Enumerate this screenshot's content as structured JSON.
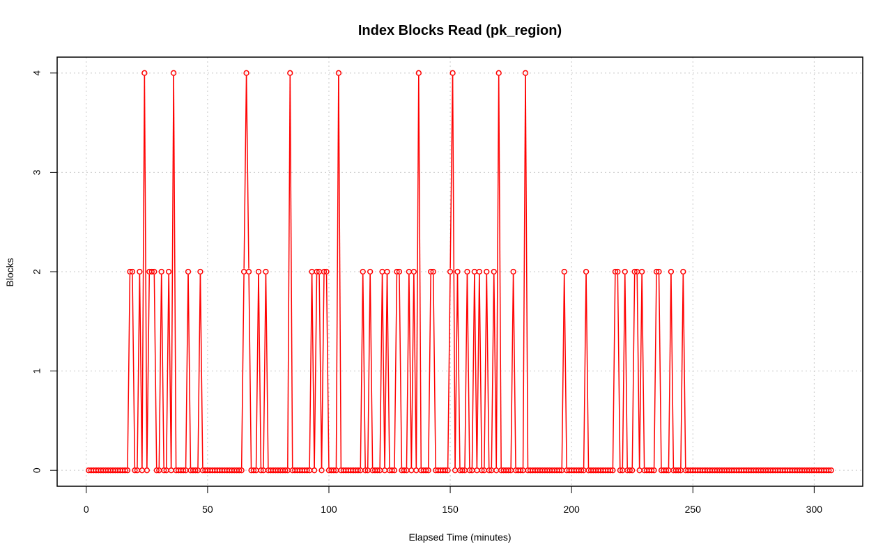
{
  "chart_data": {
    "type": "line",
    "title": "Index Blocks Read (pk_region)",
    "xlabel": "Elapsed Time (minutes)",
    "ylabel": "Blocks",
    "xlim": [
      -12,
      320
    ],
    "ylim": [
      -0.16,
      4.16
    ],
    "x_ticks": [
      0,
      50,
      100,
      150,
      200,
      250,
      300
    ],
    "y_ticks": [
      0,
      1,
      2,
      3,
      4
    ],
    "grid": true,
    "series_color": "#ff0000",
    "markers": "open-circle",
    "x_start": 1,
    "x_end": 307,
    "spikes": [
      {
        "x": 18,
        "y": 2
      },
      {
        "x": 19,
        "y": 2
      },
      {
        "x": 22,
        "y": 2
      },
      {
        "x": 24,
        "y": 4
      },
      {
        "x": 26,
        "y": 2
      },
      {
        "x": 27,
        "y": 2
      },
      {
        "x": 28,
        "y": 2
      },
      {
        "x": 31,
        "y": 2
      },
      {
        "x": 34,
        "y": 2
      },
      {
        "x": 36,
        "y": 4
      },
      {
        "x": 42,
        "y": 2
      },
      {
        "x": 47,
        "y": 2
      },
      {
        "x": 65,
        "y": 2
      },
      {
        "x": 66,
        "y": 4
      },
      {
        "x": 67,
        "y": 2
      },
      {
        "x": 71,
        "y": 2
      },
      {
        "x": 74,
        "y": 2
      },
      {
        "x": 84,
        "y": 4
      },
      {
        "x": 93,
        "y": 2
      },
      {
        "x": 95,
        "y": 2
      },
      {
        "x": 96,
        "y": 2
      },
      {
        "x": 98,
        "y": 2
      },
      {
        "x": 99,
        "y": 2
      },
      {
        "x": 104,
        "y": 4
      },
      {
        "x": 114,
        "y": 2
      },
      {
        "x": 117,
        "y": 2
      },
      {
        "x": 122,
        "y": 2
      },
      {
        "x": 124,
        "y": 2
      },
      {
        "x": 128,
        "y": 2
      },
      {
        "x": 129,
        "y": 2
      },
      {
        "x": 133,
        "y": 2
      },
      {
        "x": 135,
        "y": 2
      },
      {
        "x": 137,
        "y": 4
      },
      {
        "x": 142,
        "y": 2
      },
      {
        "x": 143,
        "y": 2
      },
      {
        "x": 150,
        "y": 2
      },
      {
        "x": 151,
        "y": 4
      },
      {
        "x": 153,
        "y": 2
      },
      {
        "x": 157,
        "y": 2
      },
      {
        "x": 160,
        "y": 2
      },
      {
        "x": 162,
        "y": 2
      },
      {
        "x": 165,
        "y": 2
      },
      {
        "x": 168,
        "y": 2
      },
      {
        "x": 170,
        "y": 4
      },
      {
        "x": 176,
        "y": 2
      },
      {
        "x": 181,
        "y": 4
      },
      {
        "x": 197,
        "y": 2
      },
      {
        "x": 206,
        "y": 2
      },
      {
        "x": 218,
        "y": 2
      },
      {
        "x": 219,
        "y": 2
      },
      {
        "x": 222,
        "y": 2
      },
      {
        "x": 226,
        "y": 2
      },
      {
        "x": 227,
        "y": 2
      },
      {
        "x": 229,
        "y": 2
      },
      {
        "x": 235,
        "y": 2
      },
      {
        "x": 236,
        "y": 2
      },
      {
        "x": 241,
        "y": 2
      },
      {
        "x": 246,
        "y": 2
      }
    ]
  }
}
